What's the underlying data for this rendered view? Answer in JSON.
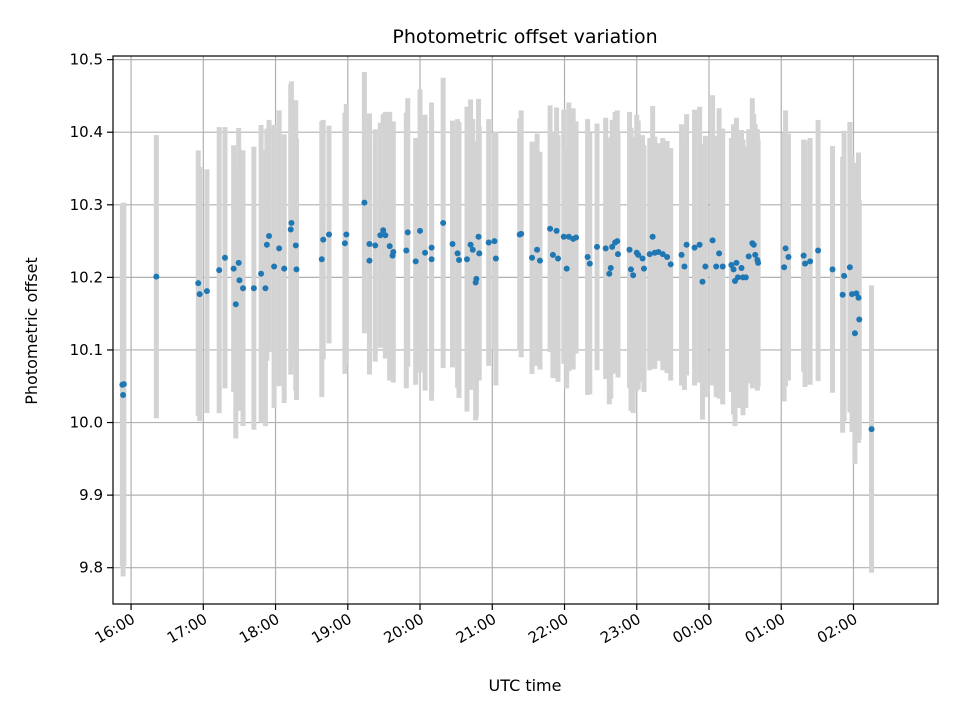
{
  "chart_data": {
    "type": "scatter",
    "title": "Photometric offset variation",
    "xlabel": "UTC time",
    "ylabel": "Photometric offset",
    "x_unit": "UTC hour of day (values past 24 wrap to next day)",
    "xlim": [
      15.75,
      27.17
    ],
    "ylim": [
      9.75,
      10.505
    ],
    "xtick_values": [
      16,
      17,
      18,
      19,
      20,
      21,
      22,
      23,
      24,
      25,
      26
    ],
    "xtick_labels": [
      "16:00",
      "17:00",
      "18:00",
      "19:00",
      "20:00",
      "21:00",
      "22:00",
      "23:00",
      "00:00",
      "01:00",
      "02:00"
    ],
    "ytick_values": [
      9.8,
      9.9,
      10.0,
      10.1,
      10.2,
      10.3,
      10.4,
      10.5
    ],
    "ytick_labels": [
      "9.8",
      "9.9",
      "10.0",
      "10.1",
      "10.2",
      "10.3",
      "10.4",
      "10.5"
    ],
    "grid": true,
    "marker_color": "#1f77b4",
    "errorbar_color": "#d3d3d3",
    "series": [
      {
        "values": [
          [
            15.88,
            10.052,
            0.25
          ],
          [
            15.89,
            10.038,
            0.25
          ],
          [
            15.9,
            10.053,
            0.25
          ],
          [
            16.35,
            10.201,
            0.195
          ],
          [
            16.93,
            10.192,
            0.183
          ],
          [
            16.95,
            10.177,
            0.175
          ],
          [
            17.05,
            10.181,
            0.168
          ],
          [
            17.22,
            10.21,
            0.197
          ],
          [
            17.3,
            10.227,
            0.18
          ],
          [
            17.42,
            10.212,
            0.17
          ],
          [
            17.45,
            10.163,
            0.185
          ],
          [
            17.49,
            10.22,
            0.186
          ],
          [
            17.5,
            10.196,
            0.18
          ],
          [
            17.55,
            10.185,
            0.19
          ],
          [
            17.7,
            10.185,
            0.195
          ],
          [
            17.8,
            10.205,
            0.205
          ],
          [
            17.86,
            10.185,
            0.19
          ],
          [
            17.88,
            10.245,
            0.16
          ],
          [
            17.91,
            10.257,
            0.16
          ],
          [
            17.98,
            10.215,
            0.195
          ],
          [
            18.05,
            10.24,
            0.19
          ],
          [
            18.12,
            10.212,
            0.185
          ],
          [
            18.21,
            10.266,
            0.2
          ],
          [
            18.22,
            10.275,
            0.195
          ],
          [
            18.28,
            10.244,
            0.2
          ],
          [
            18.29,
            10.211,
            0.18
          ],
          [
            18.64,
            10.225,
            0.19
          ],
          [
            18.66,
            10.252,
            0.165
          ],
          [
            18.74,
            10.259,
            0.15
          ],
          [
            18.96,
            10.247,
            0.18
          ],
          [
            18.98,
            10.259,
            0.18
          ],
          [
            19.23,
            10.303,
            0.18
          ],
          [
            19.3,
            10.246,
            0.18
          ],
          [
            19.3,
            10.223,
            0.155
          ],
          [
            19.38,
            10.244,
            0.16
          ],
          [
            19.45,
            10.258,
            0.155
          ],
          [
            19.49,
            10.265,
            0.16
          ],
          [
            19.52,
            10.258,
            0.17
          ],
          [
            19.58,
            10.243,
            0.185
          ],
          [
            19.62,
            10.23,
            0.165
          ],
          [
            19.63,
            10.235,
            0.18
          ],
          [
            19.81,
            10.237,
            0.19
          ],
          [
            19.83,
            10.262,
            0.185
          ],
          [
            19.94,
            10.222,
            0.17
          ],
          [
            20.0,
            10.264,
            0.195
          ],
          [
            20.07,
            10.234,
            0.19
          ],
          [
            20.16,
            10.241,
            0.2
          ],
          [
            20.16,
            10.225,
            0.195
          ],
          [
            20.32,
            10.275,
            0.2
          ],
          [
            20.45,
            10.246,
            0.17
          ],
          [
            20.52,
            10.233,
            0.185
          ],
          [
            20.54,
            10.224,
            0.19
          ],
          [
            20.65,
            10.225,
            0.21
          ],
          [
            20.7,
            10.245,
            0.2
          ],
          [
            20.73,
            10.238,
            0.18
          ],
          [
            20.77,
            10.193,
            0.19
          ],
          [
            20.78,
            10.198,
            0.19
          ],
          [
            20.81,
            10.256,
            0.19
          ],
          [
            20.82,
            10.233,
            0.175
          ],
          [
            20.95,
            10.248,
            0.17
          ],
          [
            21.03,
            10.25,
            0.15
          ],
          [
            21.05,
            10.226,
            0.175
          ],
          [
            21.38,
            10.259,
            0.16
          ],
          [
            21.4,
            10.26,
            0.17
          ],
          [
            21.55,
            10.227,
            0.16
          ],
          [
            21.62,
            10.238,
            0.16
          ],
          [
            21.66,
            10.223,
            0.15
          ],
          [
            21.8,
            10.267,
            0.17
          ],
          [
            21.84,
            10.231,
            0.17
          ],
          [
            21.89,
            10.264,
            0.17
          ],
          [
            21.91,
            10.226,
            0.17
          ],
          [
            21.99,
            10.256,
            0.175
          ],
          [
            22.03,
            10.212,
            0.165
          ],
          [
            22.06,
            10.256,
            0.185
          ],
          [
            22.12,
            10.253,
            0.18
          ],
          [
            22.16,
            10.255,
            0.16
          ],
          [
            22.32,
            10.228,
            0.19
          ],
          [
            22.35,
            10.219,
            0.18
          ],
          [
            22.45,
            10.242,
            0.17
          ],
          [
            22.57,
            10.24,
            0.18
          ],
          [
            22.62,
            10.205,
            0.18
          ],
          [
            22.64,
            10.213,
            0.18
          ],
          [
            22.66,
            10.242,
            0.175
          ],
          [
            22.7,
            10.248,
            0.18
          ],
          [
            22.73,
            10.25,
            0.18
          ],
          [
            22.74,
            10.232,
            0.17
          ],
          [
            22.9,
            10.238,
            0.19
          ],
          [
            22.92,
            10.211,
            0.195
          ],
          [
            22.95,
            10.203,
            0.19
          ],
          [
            23.0,
            10.234,
            0.19
          ],
          [
            23.02,
            10.231,
            0.185
          ],
          [
            23.08,
            10.226,
            0.17
          ],
          [
            23.1,
            10.212,
            0.17
          ],
          [
            23.18,
            10.232,
            0.16
          ],
          [
            23.22,
            10.256,
            0.18
          ],
          [
            23.25,
            10.234,
            0.16
          ],
          [
            23.3,
            10.235,
            0.15
          ],
          [
            23.36,
            10.232,
            0.16
          ],
          [
            23.42,
            10.228,
            0.16
          ],
          [
            23.47,
            10.218,
            0.16
          ],
          [
            23.62,
            10.231,
            0.18
          ],
          [
            23.66,
            10.215,
            0.17
          ],
          [
            23.69,
            10.245,
            0.18
          ],
          [
            23.8,
            10.241,
            0.19
          ],
          [
            23.87,
            10.245,
            0.19
          ],
          [
            23.91,
            10.194,
            0.19
          ],
          [
            23.95,
            10.215,
            0.18
          ],
          [
            24.05,
            10.251,
            0.2
          ],
          [
            24.1,
            10.215,
            0.18
          ],
          [
            24.14,
            10.233,
            0.2
          ],
          [
            24.19,
            10.215,
            0.19
          ],
          [
            24.31,
            10.217,
            0.175
          ],
          [
            24.34,
            10.211,
            0.2
          ],
          [
            24.36,
            10.195,
            0.2
          ],
          [
            24.38,
            10.22,
            0.2
          ],
          [
            24.4,
            10.2,
            0.18
          ],
          [
            24.45,
            10.213,
            0.19
          ],
          [
            24.47,
            10.2,
            0.19
          ],
          [
            24.51,
            10.2,
            0.18
          ],
          [
            24.55,
            10.229,
            0.175
          ],
          [
            24.6,
            10.247,
            0.2
          ],
          [
            24.62,
            10.245,
            0.18
          ],
          [
            24.64,
            10.231,
            0.18
          ],
          [
            24.67,
            10.224,
            0.18
          ],
          [
            24.68,
            10.22,
            0.17
          ],
          [
            25.04,
            10.214,
            0.185
          ],
          [
            25.06,
            10.24,
            0.19
          ],
          [
            25.1,
            10.228,
            0.17
          ],
          [
            25.31,
            10.23,
            0.16
          ],
          [
            25.33,
            10.219,
            0.17
          ],
          [
            25.4,
            10.222,
            0.17
          ],
          [
            25.51,
            10.237,
            0.18
          ],
          [
            25.71,
            10.211,
            0.17
          ],
          [
            25.85,
            10.176,
            0.19
          ],
          [
            25.87,
            10.202,
            0.2
          ],
          [
            25.95,
            10.214,
            0.2
          ],
          [
            25.98,
            10.177,
            0.19
          ],
          [
            26.02,
            10.123,
            0.18
          ],
          [
            26.04,
            10.178,
            0.18
          ],
          [
            26.07,
            10.172,
            0.2
          ],
          [
            26.08,
            10.142,
            0.165
          ],
          [
            26.25,
            9.991,
            0.198
          ]
        ]
      }
    ]
  }
}
